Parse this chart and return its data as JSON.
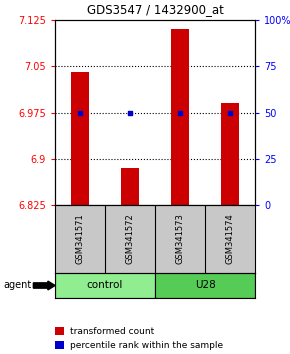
{
  "title": "GDS3547 / 1432900_at",
  "samples": [
    "GSM341571",
    "GSM341572",
    "GSM341573",
    "GSM341574"
  ],
  "bar_values": [
    7.04,
    6.885,
    7.11,
    6.99
  ],
  "bar_base": 6.825,
  "percentile_values": [
    50,
    50,
    50,
    50
  ],
  "ylim_left": [
    6.825,
    7.125
  ],
  "ylim_right": [
    0,
    100
  ],
  "yticks_left": [
    6.825,
    6.9,
    6.975,
    7.05,
    7.125
  ],
  "ytick_labels_left": [
    "6.825",
    "6.9",
    "6.975",
    "7.05",
    "7.125"
  ],
  "yticks_right": [
    0,
    25,
    50,
    75,
    100
  ],
  "ytick_labels_right": [
    "0",
    "25",
    "50",
    "75",
    "100%"
  ],
  "groups": [
    {
      "label": "control",
      "indices": [
        0,
        1
      ],
      "color": "#90EE90"
    },
    {
      "label": "U28",
      "indices": [
        2,
        3
      ],
      "color": "#55CC55"
    }
  ],
  "bar_color": "#CC0000",
  "dot_color": "#0000CC",
  "sample_bg_color": "#C8C8C8",
  "agent_label": "agent",
  "legend_items": [
    {
      "color": "#CC0000",
      "label": "transformed count"
    },
    {
      "color": "#0000CC",
      "label": "percentile rank within the sample"
    }
  ],
  "bar_width": 0.35
}
